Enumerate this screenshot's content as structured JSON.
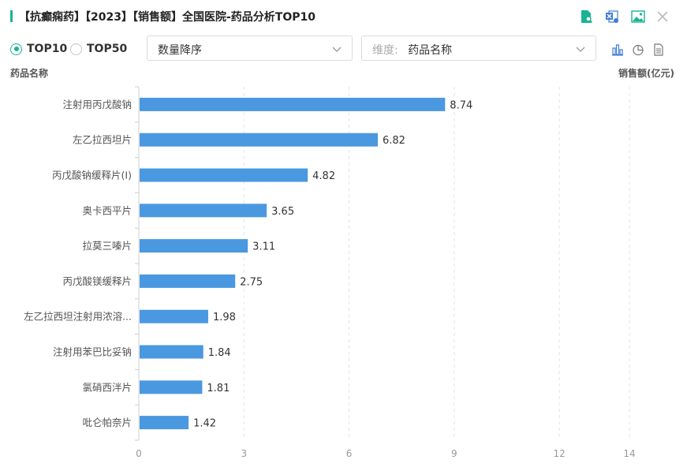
{
  "header": {
    "title": "【抗癫痫药】【2023】【销售额】全国医院-药品分析TOP10",
    "accent_color": "#1ab394",
    "icons": [
      "file-search-icon",
      "excel-export-icon",
      "image-export-icon",
      "close-icon"
    ]
  },
  "controls": {
    "radio_top10": "TOP10",
    "radio_top50": "TOP50",
    "selected_radio": "TOP10",
    "sort_select": "数量降序",
    "dimension_prefix": "维度:",
    "dimension_value": "药品名称",
    "chart_type_icons": [
      "bar-chart-icon",
      "pie-chart-icon",
      "table-icon"
    ]
  },
  "chart_data": {
    "type": "bar",
    "orientation": "horizontal",
    "ylabel": "药品名称",
    "xlabel": "销售额(亿元)",
    "categories": [
      "注射用丙戊酸钠",
      "左乙拉西坦片",
      "丙戊酸钠缓释片(Ⅰ)",
      "奥卡西平片",
      "拉莫三嗪片",
      "丙戊酸镁缓释片",
      "左乙拉西坦注射用浓溶...",
      "注射用苯巴比妥钠",
      "氯硝西泮片",
      "吡仑帕奈片"
    ],
    "values": [
      8.74,
      6.82,
      4.82,
      3.65,
      3.11,
      2.75,
      1.98,
      1.84,
      1.81,
      1.42
    ],
    "xticks": [
      0,
      3,
      6,
      9,
      12,
      14
    ],
    "xlim": [
      0,
      14
    ],
    "grid": "vertical-dashed",
    "bar_color": "#4a98e0"
  }
}
